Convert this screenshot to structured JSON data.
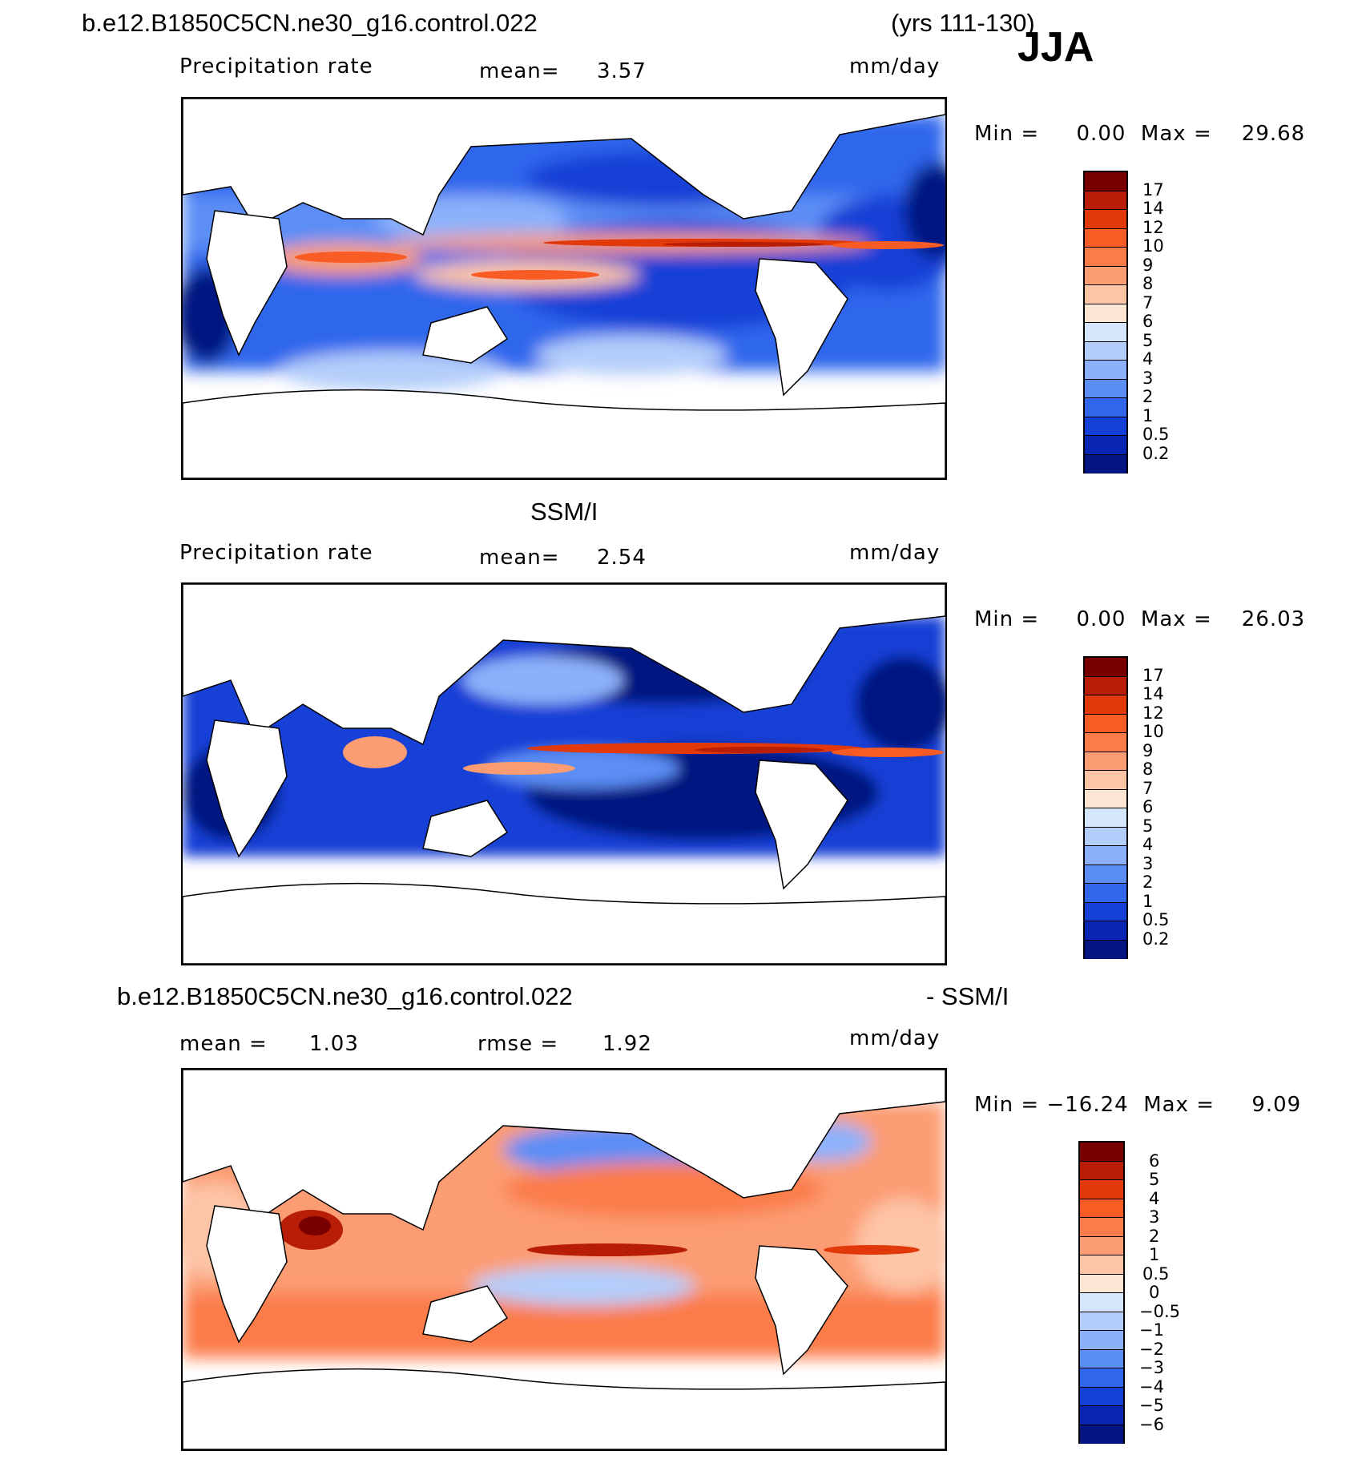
{
  "header": {
    "case_name": "b.e12.B1850C5CN.ne30_g16.control.022",
    "years": "(yrs 111-130)",
    "season": "JJA"
  },
  "panels": [
    {
      "id": "model",
      "title": "",
      "variable": "Precipitation rate",
      "stat_label": "mean=",
      "stat_value": "3.57",
      "units": "mm/day",
      "min_max": "Min =     0.00  Max =    29.68",
      "levels": [
        "17",
        "14",
        "12",
        "10",
        "9",
        "8",
        "7",
        "6",
        "5",
        "4",
        "3",
        "2",
        "1",
        "0.5",
        "0.2"
      ]
    },
    {
      "id": "obs",
      "title": "SSM/I",
      "variable": "Precipitation rate",
      "stat_label": "mean=",
      "stat_value": "2.54",
      "units": "mm/day",
      "min_max": "Min =     0.00  Max =    26.03",
      "levels": [
        "17",
        "14",
        "12",
        "10",
        "9",
        "8",
        "7",
        "6",
        "5",
        "4",
        "3",
        "2",
        "1",
        "0.5",
        "0.2"
      ]
    },
    {
      "id": "diff",
      "title_left": "b.e12.B1850C5CN.ne30_g16.control.022",
      "title_right": "- SSM/I",
      "mean_label": "mean =",
      "mean_value": "1.03",
      "rmse_label": "rmse =",
      "rmse_value": "1.92",
      "units": "mm/day",
      "min_max": "Min = −16.24  Max =     9.09",
      "levels": [
        "6",
        "5",
        "4",
        "3",
        "2",
        "1",
        "0.5",
        "0",
        "−0.5",
        "−1",
        "−2",
        "−3",
        "−4",
        "−5",
        "−6"
      ]
    }
  ],
  "colors": {
    "precip_scale": [
      "#7a0000",
      "#b81e05",
      "#e1390a",
      "#f85b23",
      "#fb7c48",
      "#fc9c72",
      "#fdc4a6",
      "#fde5d4",
      "#d6e6fa",
      "#b3cdfa",
      "#8cb1fa",
      "#5b8ef5",
      "#2f66ec",
      "#1540d6",
      "#0a24b4",
      "#041480"
    ],
    "diff_scale": [
      "#7a0000",
      "#b81e05",
      "#e1390a",
      "#f85b23",
      "#fb7c48",
      "#fc9c72",
      "#fdc4a6",
      "#fde5d4",
      "#d6e6fa",
      "#b3cdfa",
      "#8cb1fa",
      "#5b8ef5",
      "#2f66ec",
      "#1540d6",
      "#0a24b4",
      "#041480"
    ]
  }
}
